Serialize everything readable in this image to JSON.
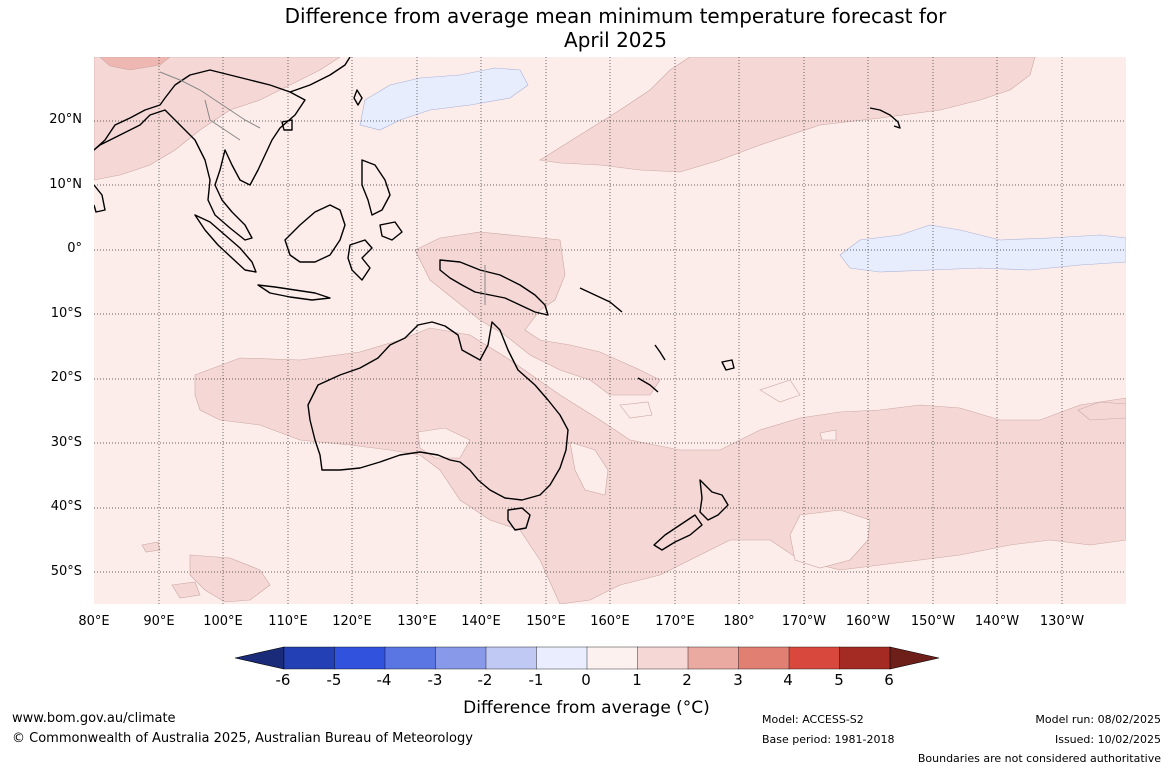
{
  "title": {
    "line1": "Difference from average mean minimum temperature forecast for",
    "line2": "April 2025"
  },
  "lat_labels": [
    "20°N",
    "10°N",
    "0°",
    "10°S",
    "20°S",
    "30°S",
    "40°S",
    "50°S"
  ],
  "lon_labels": [
    "80°E",
    "90°E",
    "100°E",
    "110°E",
    "120°E",
    "130°E",
    "140°E",
    "150°E",
    "160°E",
    "170°E",
    "180°",
    "170°W",
    "160°W",
    "150°W",
    "140°W",
    "130°W"
  ],
  "colorbar": {
    "title": "Difference from average (°C)",
    "tick_labels": [
      "-6",
      "-5",
      "-4",
      "-3",
      "-2",
      "-1",
      "0",
      "1",
      "2",
      "3",
      "4",
      "5",
      "6"
    ],
    "colors": [
      "#1a2c79",
      "#2340b5",
      "#3152dd",
      "#5a76e3",
      "#8799e8",
      "#c0c9f4",
      "#e9edfd",
      "#fdf1ef",
      "#f5d8d6",
      "#eaa9a1",
      "#e27f73",
      "#d8483c",
      "#a42b23",
      "#6f1f19"
    ]
  },
  "footer": {
    "website": "www.bom.gov.au/climate",
    "copyright": "© Commonwealth of Australia 2025, Australian Bureau of Meteorology",
    "model": "Model: ACCESS-S2",
    "base_period": "Base period: 1981-2018",
    "model_run": "Model run: 08/02/2025",
    "issued": "Issued: 10/02/2025",
    "disclaimer": "Boundaries are not considered authoritative"
  },
  "map_colors": {
    "background": "#fcecea",
    "warm_1_2": "#f5d8d6",
    "warm_2_3": "#efb7b1",
    "cool_m1_0": "#e8edfd",
    "coast": "#000000"
  }
}
